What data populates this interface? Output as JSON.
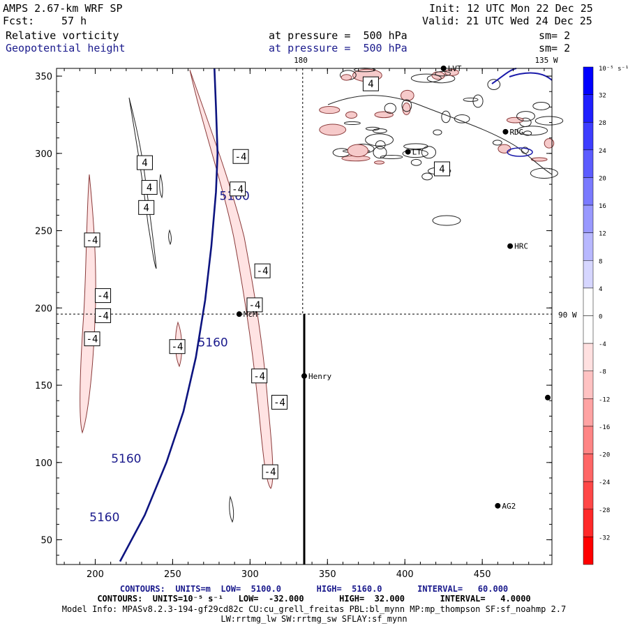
{
  "header": {
    "model": "AMPS 2.67-km WRF SP",
    "init": "Init: 12 UTC Mon 22 Dec 25",
    "fcst_label": "Fcst:",
    "fcst_value": "57 h",
    "valid": "Valid: 21 UTC Wed 24 Dec 25",
    "field1_name": "Relative vorticity",
    "field1_level": "at pressure =  500 hPa",
    "field1_sm": "sm= 2",
    "field2_name": "Geopotential height",
    "field2_level": "at pressure =  500 hPa",
    "field2_sm": "sm= 2"
  },
  "map_labels": {
    "meridian_180": "180",
    "meridian_135w": "135 W",
    "meridian_90w": "90 W"
  },
  "footer": {
    "contours1": "CONTOURS:  UNITS=m  LOW=  5100.0       HIGH=  5160.0       INTERVAL=   60.000",
    "contours2": "CONTOURS:  UNITS=10⁻⁵ s⁻¹   LOW=  -32.000       HIGH=  32.000       INTERVAL=   4.0000",
    "model_info": "Model Info: MPASv8.2.3-194-gf29cd82c CU:cu_grell_freitas PBL:bl_mynn MP:mp_thompson SF:sf_noahmp 2.7",
    "model_info2": "LW:rrtmg_lw SW:rrtmg_sw SFLAY:sf_mynn"
  },
  "chart_data": {
    "type": "contour",
    "title": "Relative vorticity / Geopotential height at 500 hPa",
    "xlim": [
      175,
      495
    ],
    "ylim": [
      34,
      355
    ],
    "xticks": [
      200,
      250,
      300,
      350,
      400,
      450
    ],
    "yticks": [
      50,
      100,
      150,
      200,
      250,
      300,
      350
    ],
    "height_contour": {
      "units": "m",
      "label": "5160",
      "points": [
        [
          216,
          36
        ],
        [
          232,
          66
        ],
        [
          246,
          100
        ],
        [
          257,
          133
        ],
        [
          265,
          168
        ],
        [
          271,
          205
        ],
        [
          275,
          240
        ],
        [
          278,
          275
        ],
        [
          279,
          300
        ],
        [
          278,
          330
        ],
        [
          277,
          355
        ]
      ],
      "label_positions": [
        [
          206,
          62
        ],
        [
          220,
          100
        ],
        [
          276,
          175
        ],
        [
          290,
          270
        ]
      ]
    },
    "vorticity_labels": [
      {
        "text": "-4",
        "x": 198,
        "y": 244
      },
      {
        "text": "-4",
        "x": 205,
        "y": 208
      },
      {
        "text": "-4",
        "x": 205,
        "y": 195
      },
      {
        "text": "-4",
        "x": 198,
        "y": 180
      },
      {
        "text": "4",
        "x": 232,
        "y": 294
      },
      {
        "text": "4",
        "x": 235,
        "y": 278
      },
      {
        "text": "4",
        "x": 233,
        "y": 265
      },
      {
        "text": "-4",
        "x": 253,
        "y": 175
      },
      {
        "text": "-4",
        "x": 294,
        "y": 298
      },
      {
        "text": "-4",
        "x": 292,
        "y": 277
      },
      {
        "text": "-4",
        "x": 308,
        "y": 224
      },
      {
        "text": "-4",
        "x": 303,
        "y": 202
      },
      {
        "text": "-4",
        "x": 306,
        "y": 156
      },
      {
        "text": "-4",
        "x": 319,
        "y": 139
      },
      {
        "text": "-4",
        "x": 313,
        "y": 94
      },
      {
        "text": "4",
        "x": 378,
        "y": 345
      },
      {
        "text": "4",
        "x": 424,
        "y": 290
      }
    ],
    "stations": [
      {
        "name": "McM",
        "x": 293,
        "y": 196
      },
      {
        "name": "Henry",
        "x": 335,
        "y": 156
      },
      {
        "name": "RDG",
        "x": 465,
        "y": 314
      },
      {
        "name": "HRC",
        "x": 468,
        "y": 240
      },
      {
        "name": "AG2",
        "x": 460,
        "y": 72
      },
      {
        "name": "LVT",
        "x": 425,
        "y": 355
      },
      {
        "name": "LT",
        "x": 402,
        "y": 301
      }
    ],
    "colorbar": {
      "units": "10⁻⁵ s⁻¹",
      "levels": [
        "32",
        "28",
        "24",
        "20",
        "16",
        "12",
        "8",
        "4",
        "0",
        "-4",
        "-8",
        "-12",
        "-16",
        "-20",
        "-24",
        "-28",
        "-32"
      ],
      "colors": [
        "#0000ff",
        "#1f1fff",
        "#3d3dff",
        "#5c5cff",
        "#7a7aff",
        "#9999ff",
        "#b8b8ff",
        "#d6d6ff",
        "#ffffff",
        "#ffffff",
        "#ffe0e0",
        "#ffc2c2",
        "#ffa3a3",
        "#ff8585",
        "#ff6666",
        "#ff4747",
        "#ff2929",
        "#ff0000"
      ]
    }
  }
}
